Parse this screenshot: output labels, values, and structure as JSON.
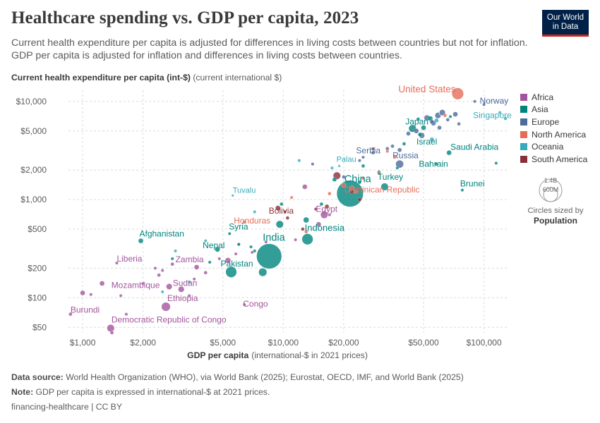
{
  "header": {
    "title": "Healthcare spending vs. GDP per capita, 2023",
    "subtitle": "Current health expenditure per capita is adjusted for differences in living costs between countries but not for inflation. GDP per capita is adjusted for inflation and differences in living costs between countries.",
    "logo_line1": "Our World",
    "logo_line2": "in Data"
  },
  "colors": {
    "Africa": "#a2559c",
    "Asia": "#00847e",
    "Europe": "#4c6a9c",
    "North America": "#e56e5a",
    "Oceania": "#38aaba",
    "South America": "#883039"
  },
  "legend": {
    "items": [
      "Africa",
      "Asia",
      "Europe",
      "North America",
      "Oceania",
      "South America"
    ],
    "size_big": "1.4B",
    "size_small": "600M",
    "size_caption": "Circles sized by",
    "size_variable": "Population"
  },
  "chart_data": {
    "type": "scatter",
    "title": "Healthcare spending vs. GDP per capita, 2023",
    "xlabel": "GDP per capita",
    "xlabel_unit": "(international-$ in 2021 prices)",
    "ylabel": "Current health expenditure per capita (int-$)",
    "ylabel_unit": "(current international $)",
    "xscale": "log",
    "yscale": "log",
    "xlim": [
      850,
      130000
    ],
    "ylim": [
      44,
      13000
    ],
    "x_ticks": [
      1000,
      2000,
      5000,
      10000,
      20000,
      50000,
      100000
    ],
    "x_tick_labels": [
      "$1,000",
      "$2,000",
      "$5,000",
      "$10,000",
      "$20,000",
      "$50,000",
      "$100,000"
    ],
    "y_ticks": [
      50,
      100,
      200,
      500,
      1000,
      2000,
      5000,
      10000
    ],
    "y_tick_labels": [
      "$50",
      "$100",
      "$200",
      "$500",
      "$1,000",
      "$2,000",
      "$5,000",
      "$10,000"
    ],
    "grid": true,
    "legend_position": "right",
    "labeled_points": [
      {
        "name": "United States",
        "region": "North America",
        "x": 74000,
        "y": 12000,
        "r": 8.5
      },
      {
        "name": "Norway",
        "region": "Europe",
        "x": 90000,
        "y": 10000,
        "r": 2.2
      },
      {
        "name": "Singapore",
        "region": "Oceania",
        "x": 120000,
        "y": 7700,
        "r": 2.2
      },
      {
        "name": "Japan",
        "region": "Asia",
        "x": 44000,
        "y": 5300,
        "r": 5.5
      },
      {
        "name": "Israel",
        "region": "Asia",
        "x": 48000,
        "y": 4600,
        "r": 2.8
      },
      {
        "name": "Saudi Arabia",
        "region": "Asia",
        "x": 67000,
        "y": 3000,
        "r": 3.5
      },
      {
        "name": "Russia",
        "region": "Europe",
        "x": 38000,
        "y": 2300,
        "r": 5.8
      },
      {
        "name": "Bahrain",
        "region": "Asia",
        "x": 58000,
        "y": 2300,
        "r": 2.2
      },
      {
        "name": "Serbia",
        "region": "Europe",
        "x": 24000,
        "y": 2500,
        "r": 2.2
      },
      {
        "name": "Palau",
        "region": "Oceania",
        "x": 19000,
        "y": 2200,
        "r": 1.8
      },
      {
        "name": "China",
        "region": "Asia",
        "x": 21500,
        "y": 1150,
        "r": 19
      },
      {
        "name": "Turkey",
        "region": "Asia",
        "x": 32000,
        "y": 1350,
        "r": 5.5
      },
      {
        "name": "Dominican Republic",
        "region": "North America",
        "x": 22000,
        "y": 1300,
        "r": 3.5
      },
      {
        "name": "Brunei",
        "region": "Asia",
        "x": 78000,
        "y": 1250,
        "r": 2.2
      },
      {
        "name": "Tuvalu",
        "region": "Oceania",
        "x": 5600,
        "y": 1100,
        "r": 1.8
      },
      {
        "name": "Bolivia",
        "region": "South America",
        "x": 9400,
        "y": 820,
        "r": 3.5
      },
      {
        "name": "Egypt",
        "region": "Africa",
        "x": 16000,
        "y": 700,
        "r": 5.5
      },
      {
        "name": "Honduras",
        "region": "North America",
        "x": 6400,
        "y": 590,
        "r": 2.5
      },
      {
        "name": "Indonesia",
        "region": "Asia",
        "x": 13200,
        "y": 395,
        "r": 8
      },
      {
        "name": "Syria",
        "region": "Asia",
        "x": 5400,
        "y": 450,
        "r": 2.2
      },
      {
        "name": "Afghanistan",
        "region": "Asia",
        "x": 1950,
        "y": 380,
        "r": 3.5
      },
      {
        "name": "India",
        "region": "Asia",
        "x": 8500,
        "y": 265,
        "r": 18
      },
      {
        "name": "Nepal",
        "region": "Asia",
        "x": 4700,
        "y": 310,
        "r": 3.5
      },
      {
        "name": "Pakistan",
        "region": "Asia",
        "x": 5500,
        "y": 183,
        "r": 8
      },
      {
        "name": "Zambia",
        "region": "Africa",
        "x": 3700,
        "y": 205,
        "r": 3.5
      },
      {
        "name": "Liberia",
        "region": "Africa",
        "x": 1480,
        "y": 226,
        "r": 2.2
      },
      {
        "name": "Mozambique",
        "region": "Africa",
        "x": 2700,
        "y": 130,
        "r": 4.5
      },
      {
        "name": "Sudan",
        "region": "Africa",
        "x": 3100,
        "y": 122,
        "r": 4.5
      },
      {
        "name": "Ethiopia",
        "region": "Africa",
        "x": 2600,
        "y": 81,
        "r": 6.5
      },
      {
        "name": "Congo",
        "region": "Africa",
        "x": 6400,
        "y": 85,
        "r": 2.2
      },
      {
        "name": "Burundi",
        "region": "Africa",
        "x": 870,
        "y": 68,
        "r": 2.5
      },
      {
        "name": "Democratic Republic of Congo",
        "region": "Africa",
        "x": 1380,
        "y": 49,
        "r": 5.5
      }
    ],
    "unlabeled_points": [
      {
        "region": "Africa",
        "x": 1000,
        "y": 112,
        "r": 3.5
      },
      {
        "region": "Africa",
        "x": 1100,
        "y": 108,
        "r": 2.2
      },
      {
        "region": "Africa",
        "x": 1250,
        "y": 140,
        "r": 3.5
      },
      {
        "region": "Africa",
        "x": 1400,
        "y": 44,
        "r": 2.5
      },
      {
        "region": "Africa",
        "x": 1650,
        "y": 68,
        "r": 2.2
      },
      {
        "region": "Africa",
        "x": 1550,
        "y": 105,
        "r": 2.2
      },
      {
        "region": "Africa",
        "x": 2000,
        "y": 140,
        "r": 2.2
      },
      {
        "region": "Africa",
        "x": 2300,
        "y": 200,
        "r": 2.2
      },
      {
        "region": "Africa",
        "x": 2400,
        "y": 170,
        "r": 2.5
      },
      {
        "region": "Africa",
        "x": 2500,
        "y": 190,
        "r": 2.2
      },
      {
        "region": "Africa",
        "x": 2800,
        "y": 220,
        "r": 2.5
      },
      {
        "region": "Africa",
        "x": 3400,
        "y": 105,
        "r": 2.2
      },
      {
        "region": "Africa",
        "x": 3600,
        "y": 155,
        "r": 2.2
      },
      {
        "region": "Africa",
        "x": 4100,
        "y": 180,
        "r": 2.5
      },
      {
        "region": "Africa",
        "x": 4800,
        "y": 250,
        "r": 2.2
      },
      {
        "region": "Africa",
        "x": 5300,
        "y": 240,
        "r": 4
      },
      {
        "region": "Africa",
        "x": 5800,
        "y": 280,
        "r": 2.2
      },
      {
        "region": "Africa",
        "x": 6000,
        "y": 350,
        "r": 2.2
      },
      {
        "region": "Africa",
        "x": 7000,
        "y": 290,
        "r": 2.2
      },
      {
        "region": "Africa",
        "x": 8200,
        "y": 370,
        "r": 2.2
      },
      {
        "region": "Africa",
        "x": 11500,
        "y": 390,
        "r": 2.2
      },
      {
        "region": "Africa",
        "x": 12800,
        "y": 1350,
        "r": 3.5
      },
      {
        "region": "Africa",
        "x": 15000,
        "y": 560,
        "r": 3.5
      },
      {
        "region": "Africa",
        "x": 17000,
        "y": 700,
        "r": 2.2
      },
      {
        "region": "Asia",
        "x": 2800,
        "y": 250,
        "r": 2.2
      },
      {
        "region": "Asia",
        "x": 4300,
        "y": 230,
        "r": 2.2
      },
      {
        "region": "Asia",
        "x": 6000,
        "y": 350,
        "r": 2.2
      },
      {
        "region": "Asia",
        "x": 6900,
        "y": 330,
        "r": 2.2
      },
      {
        "region": "Asia",
        "x": 7200,
        "y": 300,
        "r": 2.2
      },
      {
        "region": "Asia",
        "x": 7900,
        "y": 182,
        "r": 6
      },
      {
        "region": "Asia",
        "x": 9600,
        "y": 560,
        "r": 5.5
      },
      {
        "region": "Asia",
        "x": 9800,
        "y": 900,
        "r": 2.5
      },
      {
        "region": "Asia",
        "x": 13000,
        "y": 620,
        "r": 4
      },
      {
        "region": "Asia",
        "x": 15500,
        "y": 900,
        "r": 2.5
      },
      {
        "region": "Asia",
        "x": 18000,
        "y": 1600,
        "r": 3
      },
      {
        "region": "Asia",
        "x": 24000,
        "y": 1500,
        "r": 2.5
      },
      {
        "region": "Asia",
        "x": 25000,
        "y": 2200,
        "r": 2.5
      },
      {
        "region": "Asia",
        "x": 30000,
        "y": 1900,
        "r": 2.5
      },
      {
        "region": "Asia",
        "x": 37000,
        "y": 2100,
        "r": 2.2
      },
      {
        "region": "Asia",
        "x": 40000,
        "y": 3700,
        "r": 2.5
      },
      {
        "region": "Asia",
        "x": 47000,
        "y": 6600,
        "r": 2.5
      },
      {
        "region": "Asia",
        "x": 54000,
        "y": 6700,
        "r": 3.5
      },
      {
        "region": "Asia",
        "x": 68000,
        "y": 7000,
        "r": 2.2
      },
      {
        "region": "Asia",
        "x": 115000,
        "y": 2350,
        "r": 2.2
      },
      {
        "region": "Asia",
        "x": 50000,
        "y": 5400,
        "r": 3.5
      },
      {
        "region": "Europe",
        "x": 14000,
        "y": 2300,
        "r": 2.2
      },
      {
        "region": "Europe",
        "x": 20000,
        "y": 1700,
        "r": 2.5
      },
      {
        "region": "Europe",
        "x": 25000,
        "y": 2700,
        "r": 2.2
      },
      {
        "region": "Europe",
        "x": 28000,
        "y": 3000,
        "r": 2.5
      },
      {
        "region": "Europe",
        "x": 33000,
        "y": 3300,
        "r": 2.5
      },
      {
        "region": "Europe",
        "x": 35000,
        "y": 3500,
        "r": 2.5
      },
      {
        "region": "Europe",
        "x": 38000,
        "y": 3200,
        "r": 3
      },
      {
        "region": "Europe",
        "x": 42000,
        "y": 4700,
        "r": 3
      },
      {
        "region": "Europe",
        "x": 46000,
        "y": 5000,
        "r": 3.5
      },
      {
        "region": "Europe",
        "x": 49000,
        "y": 4500,
        "r": 4
      },
      {
        "region": "Europe",
        "x": 52000,
        "y": 6800,
        "r": 4
      },
      {
        "region": "Europe",
        "x": 56000,
        "y": 6000,
        "r": 3.5
      },
      {
        "region": "Europe",
        "x": 59000,
        "y": 7200,
        "r": 4.5
      },
      {
        "region": "Europe",
        "x": 62000,
        "y": 7700,
        "r": 4.5
      },
      {
        "region": "Europe",
        "x": 66000,
        "y": 6500,
        "r": 2.5
      },
      {
        "region": "Europe",
        "x": 72000,
        "y": 7400,
        "r": 3.5
      },
      {
        "region": "Europe",
        "x": 75000,
        "y": 5900,
        "r": 2.5
      },
      {
        "region": "Europe",
        "x": 100000,
        "y": 9300,
        "r": 2.2
      },
      {
        "region": "Europe",
        "x": 60000,
        "y": 5400,
        "r": 3
      },
      {
        "region": "Europe",
        "x": 55000,
        "y": 6200,
        "r": 3
      },
      {
        "region": "North America",
        "x": 11000,
        "y": 1050,
        "r": 2.2
      },
      {
        "region": "North America",
        "x": 13000,
        "y": 470,
        "r": 2.5
      },
      {
        "region": "North America",
        "x": 17000,
        "y": 1150,
        "r": 2.5
      },
      {
        "region": "North America",
        "x": 20000,
        "y": 1400,
        "r": 3
      },
      {
        "region": "North America",
        "x": 25000,
        "y": 1650,
        "r": 2.2
      },
      {
        "region": "North America",
        "x": 30000,
        "y": 1850,
        "r": 2.2
      },
      {
        "region": "North America",
        "x": 33000,
        "y": 3100,
        "r": 2.2
      },
      {
        "region": "North America",
        "x": 36000,
        "y": 2700,
        "r": 2.2
      },
      {
        "region": "North America",
        "x": 64000,
        "y": 7200,
        "r": 2.5
      },
      {
        "region": "North America",
        "x": 23000,
        "y": 1200,
        "r": 2.2
      },
      {
        "region": "Oceania",
        "x": 3400,
        "y": 145,
        "r": 2.2
      },
      {
        "region": "Oceania",
        "x": 2500,
        "y": 115,
        "r": 2.2
      },
      {
        "region": "Oceania",
        "x": 2900,
        "y": 300,
        "r": 2.2
      },
      {
        "region": "Oceania",
        "x": 4100,
        "y": 380,
        "r": 2.2
      },
      {
        "region": "Oceania",
        "x": 7200,
        "y": 750,
        "r": 2.2
      },
      {
        "region": "Oceania",
        "x": 12000,
        "y": 2500,
        "r": 2.2
      },
      {
        "region": "Oceania",
        "x": 17500,
        "y": 2100,
        "r": 2.2
      },
      {
        "region": "Oceania",
        "x": 58000,
        "y": 6400,
        "r": 3
      },
      {
        "region": "Oceania",
        "x": 55000,
        "y": 4100,
        "r": 3
      },
      {
        "region": "Oceania",
        "x": 128000,
        "y": 6700,
        "r": 2.5
      },
      {
        "region": "South America",
        "x": 10500,
        "y": 650,
        "r": 2.5
      },
      {
        "region": "South America",
        "x": 12500,
        "y": 500,
        "r": 2.5
      },
      {
        "region": "South America",
        "x": 14500,
        "y": 800,
        "r": 2.2
      },
      {
        "region": "South America",
        "x": 16500,
        "y": 850,
        "r": 3
      },
      {
        "region": "South America",
        "x": 18500,
        "y": 1750,
        "r": 5.5
      },
      {
        "region": "South America",
        "x": 22000,
        "y": 1200,
        "r": 3
      },
      {
        "region": "South America",
        "x": 24000,
        "y": 1000,
        "r": 2.5
      },
      {
        "region": "South America",
        "x": 28000,
        "y": 3300,
        "r": 2.2
      },
      {
        "region": "South America",
        "x": 10200,
        "y": 750,
        "r": 2.2
      }
    ]
  },
  "footer": {
    "source_label": "Data source:",
    "source_text": "World Health Organization (WHO), via World Bank (2025); Eurostat, OECD, IMF, and World Bank (2025)",
    "note_label": "Note:",
    "note_text": "GDP per capita is expressed in international-$ at 2021 prices.",
    "slug": "financing-healthcare | CC BY"
  }
}
